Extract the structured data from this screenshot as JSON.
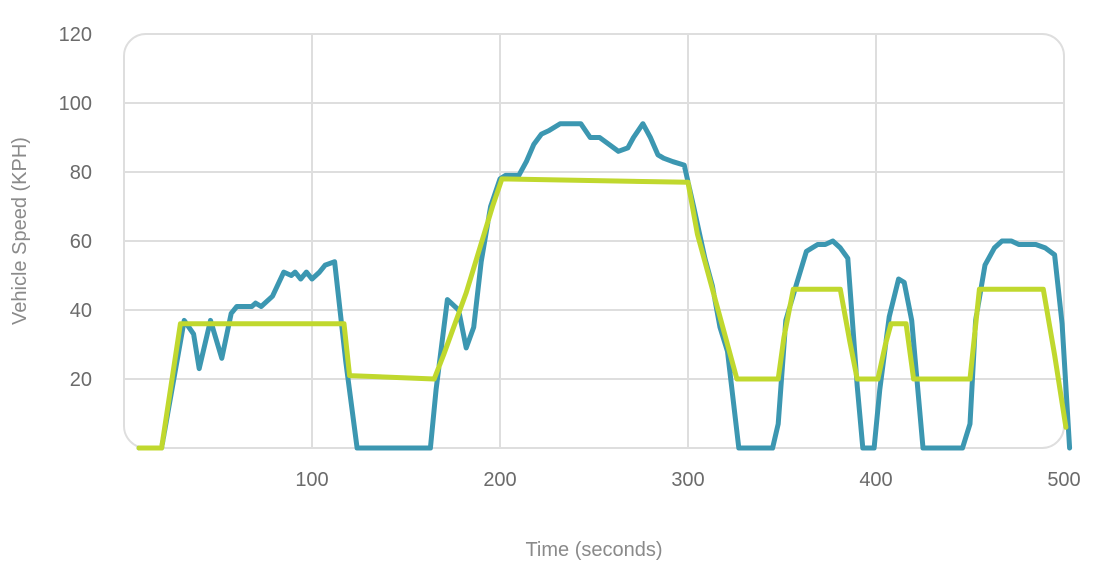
{
  "chart_data": {
    "type": "line",
    "title": "",
    "xlabel": "Time (seconds)",
    "ylabel": "Vehicle Speed (KPH)",
    "xlim": [
      0,
      500
    ],
    "ylim": [
      0,
      120
    ],
    "x_ticks": [
      100,
      200,
      300,
      400,
      500
    ],
    "y_ticks": [
      20,
      40,
      60,
      80,
      100,
      120
    ],
    "grid": true,
    "legend": "none",
    "series": [
      {
        "color": "#3c97b1",
        "points": [
          [
            8,
            0
          ],
          [
            20,
            0
          ],
          [
            32,
            37
          ],
          [
            37,
            33
          ],
          [
            40,
            23
          ],
          [
            46,
            37
          ],
          [
            52,
            26
          ],
          [
            57,
            39
          ],
          [
            60,
            41
          ],
          [
            68,
            41
          ],
          [
            70,
            42
          ],
          [
            73,
            41
          ],
          [
            79,
            44
          ],
          [
            85,
            51
          ],
          [
            89,
            50
          ],
          [
            91,
            51
          ],
          [
            94,
            49
          ],
          [
            97,
            51
          ],
          [
            100,
            49
          ],
          [
            104,
            51
          ],
          [
            107,
            53
          ],
          [
            112,
            54
          ],
          [
            118,
            25
          ],
          [
            124,
            0
          ],
          [
            128,
            0
          ],
          [
            160,
            0
          ],
          [
            163,
            0
          ],
          [
            166,
            17
          ],
          [
            172,
            43
          ],
          [
            178,
            40
          ],
          [
            182,
            29
          ],
          [
            186,
            35
          ],
          [
            190,
            54
          ],
          [
            195,
            70
          ],
          [
            200,
            78
          ],
          [
            203,
            79
          ],
          [
            210,
            79
          ],
          [
            214,
            83
          ],
          [
            218,
            88
          ],
          [
            222,
            91
          ],
          [
            226,
            92
          ],
          [
            232,
            94
          ],
          [
            238,
            94
          ],
          [
            243,
            94
          ],
          [
            248,
            90
          ],
          [
            253,
            90
          ],
          [
            258,
            88
          ],
          [
            263,
            86
          ],
          [
            268,
            87
          ],
          [
            271,
            90
          ],
          [
            276,
            94
          ],
          [
            280,
            90
          ],
          [
            284,
            85
          ],
          [
            287,
            84
          ],
          [
            292,
            83
          ],
          [
            298,
            82
          ],
          [
            303,
            70
          ],
          [
            309,
            55
          ],
          [
            313,
            47
          ],
          [
            317,
            35
          ],
          [
            321,
            28
          ],
          [
            327,
            0
          ],
          [
            333,
            0
          ],
          [
            345,
            0
          ],
          [
            348,
            7
          ],
          [
            352,
            37
          ],
          [
            358,
            48
          ],
          [
            363,
            57
          ],
          [
            366,
            58
          ],
          [
            369,
            59
          ],
          [
            373,
            59
          ],
          [
            377,
            60
          ],
          [
            381,
            58
          ],
          [
            385,
            55
          ],
          [
            390,
            18
          ],
          [
            393,
            0
          ],
          [
            399,
            0
          ],
          [
            402,
            17
          ],
          [
            407,
            38
          ],
          [
            412,
            49
          ],
          [
            415,
            48
          ],
          [
            419,
            37
          ],
          [
            425,
            0
          ],
          [
            430,
            0
          ],
          [
            446,
            0
          ],
          [
            450,
            7
          ],
          [
            453,
            37
          ],
          [
            458,
            53
          ],
          [
            463,
            58
          ],
          [
            467,
            60
          ],
          [
            472,
            60
          ],
          [
            476,
            59
          ],
          [
            485,
            59
          ],
          [
            490,
            58
          ],
          [
            495,
            56
          ],
          [
            499,
            36
          ],
          [
            503,
            0
          ]
        ]
      },
      {
        "color": "#c0d82e",
        "points": [
          [
            8,
            0
          ],
          [
            20,
            0
          ],
          [
            30,
            36
          ],
          [
            112,
            36
          ],
          [
            117,
            36
          ],
          [
            120,
            21
          ],
          [
            165,
            20
          ],
          [
            170,
            27
          ],
          [
            182,
            45
          ],
          [
            196,
            70
          ],
          [
            201,
            78
          ],
          [
            300,
            77
          ],
          [
            305,
            62
          ],
          [
            326,
            20
          ],
          [
            348,
            20
          ],
          [
            351,
            32
          ],
          [
            356,
            46
          ],
          [
            381,
            46
          ],
          [
            386,
            31
          ],
          [
            390,
            20
          ],
          [
            401,
            20
          ],
          [
            405,
            30
          ],
          [
            408,
            36
          ],
          [
            416,
            36
          ],
          [
            420,
            20
          ],
          [
            450,
            20
          ],
          [
            455,
            46
          ],
          [
            489,
            46
          ],
          [
            495,
            27
          ],
          [
            501,
            6
          ]
        ]
      }
    ]
  }
}
